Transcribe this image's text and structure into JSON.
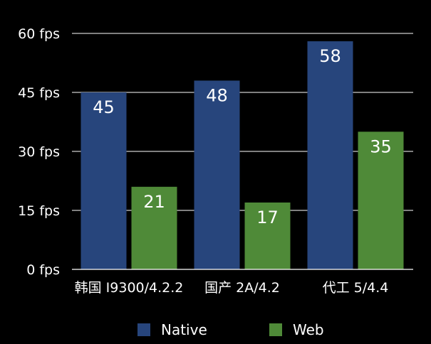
{
  "chart_data": {
    "type": "bar",
    "title": "",
    "xlabel": "",
    "ylabel": "",
    "categories": [
      "韩国 I9300/4.2.2",
      "国产 2A/4.2",
      "代工 5/4.4"
    ],
    "series": [
      {
        "name": "Native",
        "values": [
          45,
          48,
          58
        ],
        "color": "#27457c"
      },
      {
        "name": "Web",
        "values": [
          21,
          17,
          35
        ],
        "color": "#4f8a38"
      }
    ],
    "ylim": [
      0,
      60
    ],
    "yticks": [
      0,
      15,
      30,
      45,
      60
    ],
    "ytick_labels": [
      "0 fps",
      "15 fps",
      "30 fps",
      "45 fps",
      "60 fps"
    ],
    "grid": true,
    "gridline_color": "#ffffff",
    "background_color": "#000000",
    "legend_position": "bottom"
  }
}
